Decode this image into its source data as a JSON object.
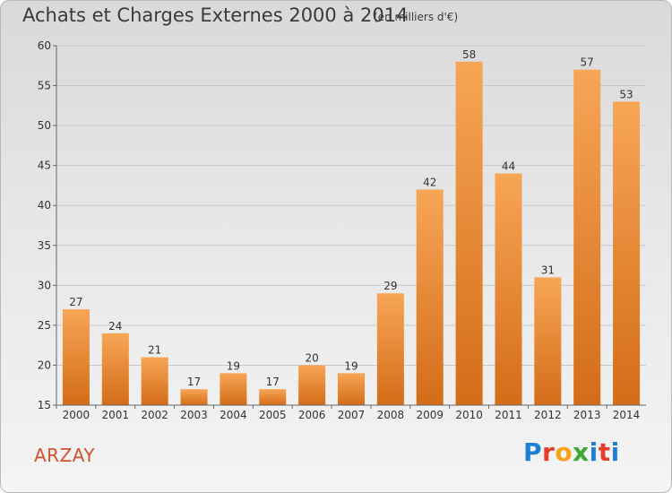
{
  "header": {
    "title": "Achats et Charges Externes 2000 à 2014",
    "unit": "(en milliers d'€)"
  },
  "footer": {
    "commune": "ARZAY",
    "logo_letters": [
      "P",
      "r",
      "o",
      "x",
      "i",
      "t",
      "i"
    ],
    "logo_colors": [
      "#1f7fd4",
      "#e53e2e",
      "#f7a21b",
      "#3aa935",
      "#1f7fd4",
      "#e53e2e",
      "#1f7fd4"
    ]
  },
  "colors": {
    "bar_top": "#f7a656",
    "bar_bottom": "#d46c18",
    "grid": "#c8c8c8",
    "axis": "#666666",
    "text": "#333333"
  },
  "chart_data": {
    "type": "bar",
    "title": "Achats et Charges Externes 2000 à 2014",
    "subtitle": "(en milliers d'€)",
    "xlabel": "",
    "ylabel": "",
    "categories": [
      "2000",
      "2001",
      "2002",
      "2003",
      "2004",
      "2005",
      "2006",
      "2007",
      "2008",
      "2009",
      "2010",
      "2011",
      "2012",
      "2013",
      "2014"
    ],
    "values": [
      27,
      24,
      21,
      17,
      19,
      17,
      20,
      19,
      29,
      42,
      58,
      44,
      31,
      57,
      53
    ],
    "ylim": [
      15,
      60
    ],
    "yticks": [
      15,
      20,
      25,
      30,
      35,
      40,
      45,
      50,
      55,
      60
    ],
    "grid": true,
    "data_labels": true
  }
}
